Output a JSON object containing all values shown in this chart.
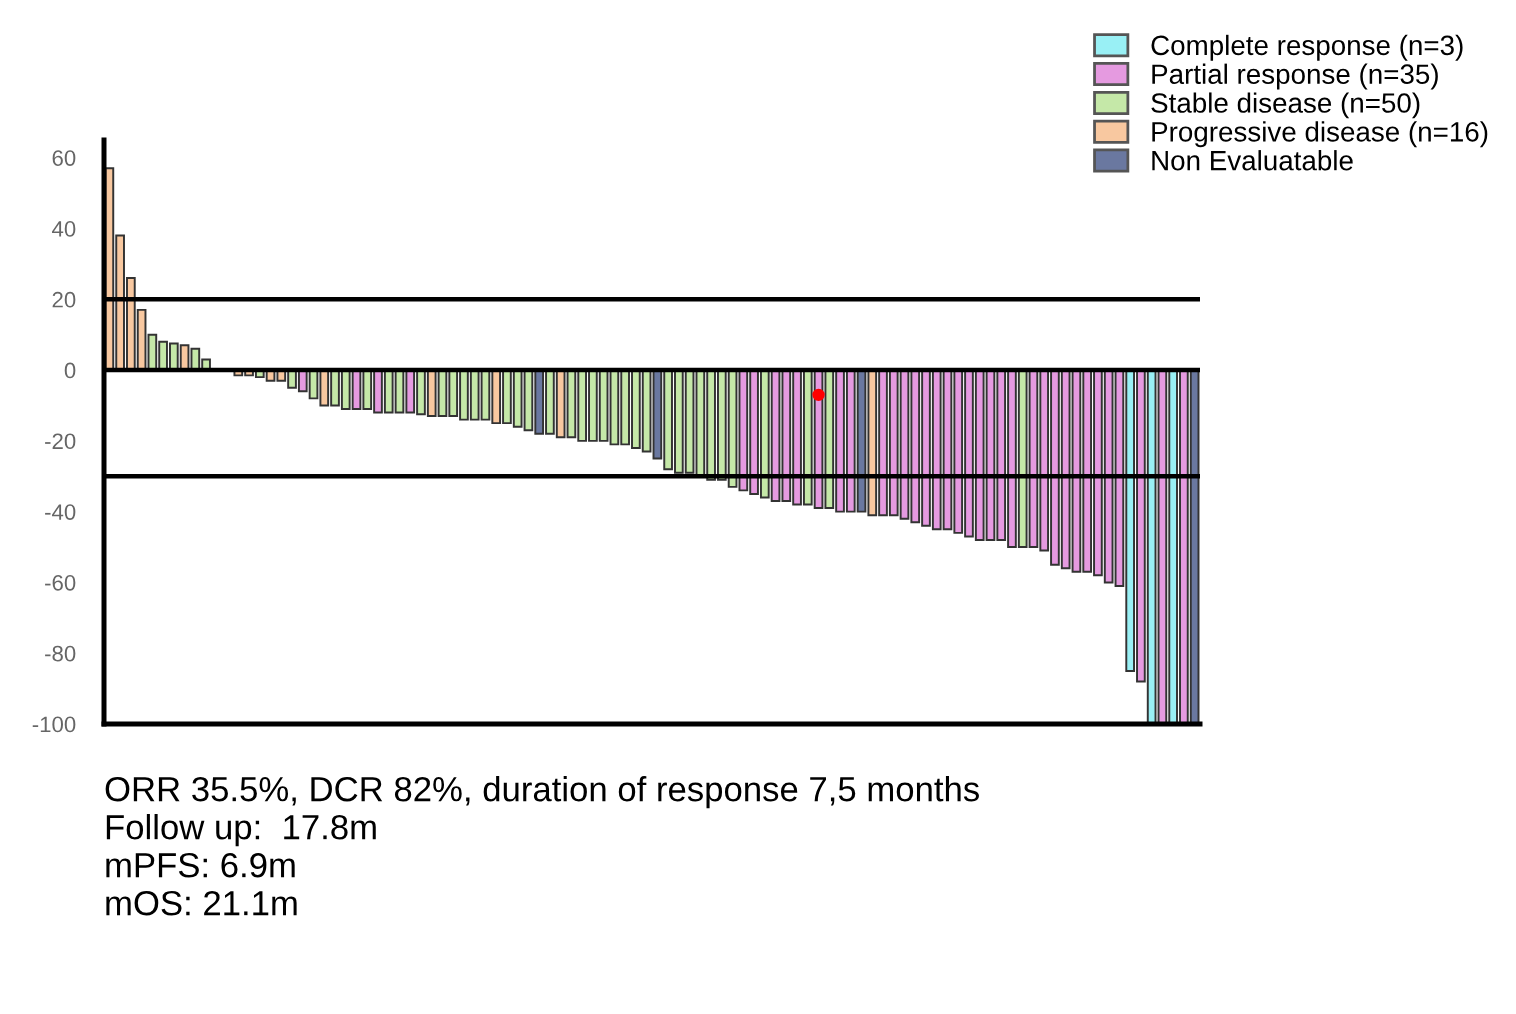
{
  "chart_data": {
    "type": "bar",
    "categories": [
      null,
      null,
      null,
      null,
      null,
      null,
      null,
      null,
      null,
      null,
      null,
      null,
      null,
      null,
      null,
      null,
      null,
      null,
      null,
      null,
      null,
      null,
      null,
      null,
      null,
      null,
      null,
      null,
      null,
      null,
      null,
      null,
      null,
      null,
      null,
      null,
      null,
      null,
      null,
      null,
      null,
      null,
      null,
      null,
      null,
      null,
      null,
      null,
      null,
      null,
      null,
      null,
      null,
      null,
      null,
      null,
      null,
      null,
      null,
      null,
      null,
      null,
      null,
      null,
      null,
      null,
      null,
      null,
      null,
      null,
      null,
      null,
      null,
      null,
      null,
      null,
      null,
      null,
      null,
      null,
      null,
      null,
      null,
      null,
      null,
      null,
      null,
      null,
      null,
      null,
      null,
      null,
      null,
      null,
      null,
      null,
      null,
      null,
      null,
      null,
      null,
      null
    ],
    "series": [
      {
        "name": "Complete response (n=3)",
        "color": "#99f0f5",
        "values": [
          null,
          null,
          null,
          null,
          null,
          null,
          null,
          null,
          null,
          null,
          null,
          null,
          null,
          null,
          null,
          null,
          null,
          null,
          null,
          null,
          null,
          null,
          null,
          null,
          null,
          null,
          null,
          null,
          null,
          null,
          null,
          null,
          null,
          null,
          null,
          null,
          null,
          null,
          null,
          null,
          null,
          null,
          null,
          null,
          null,
          null,
          null,
          null,
          null,
          null,
          null,
          null,
          null,
          null,
          null,
          null,
          null,
          null,
          null,
          null,
          null,
          null,
          null,
          null,
          null,
          null,
          null,
          null,
          null,
          null,
          null,
          null,
          null,
          null,
          null,
          null,
          null,
          null,
          null,
          null,
          null,
          null,
          null,
          null,
          null,
          null,
          null,
          null,
          null,
          null,
          null,
          null,
          null,
          null,
          null,
          -85,
          null,
          -100,
          null,
          -100,
          null,
          null
        ]
      },
      {
        "name": "Partial response (n=35)",
        "color": "#e59ae0",
        "values": [
          null,
          null,
          null,
          null,
          null,
          null,
          null,
          null,
          null,
          null,
          null,
          null,
          null,
          null,
          null,
          null,
          null,
          null,
          -6,
          null,
          null,
          null,
          null,
          -11,
          null,
          -12,
          null,
          null,
          -12,
          null,
          null,
          null,
          null,
          null,
          null,
          null,
          null,
          null,
          null,
          null,
          null,
          null,
          null,
          null,
          null,
          null,
          null,
          null,
          null,
          null,
          null,
          null,
          null,
          null,
          null,
          null,
          null,
          null,
          null,
          -34,
          -35,
          null,
          -37,
          -37,
          -38,
          null,
          -39,
          null,
          -40,
          -40,
          null,
          null,
          -41,
          -41,
          -42,
          -43,
          -44,
          -45,
          -45,
          -46,
          -47,
          -48,
          -48,
          -48,
          -50,
          null,
          -50,
          -51,
          -55,
          -56,
          -57,
          -57,
          -58,
          -60,
          -61,
          null,
          -88,
          null,
          -100,
          null,
          -100,
          null
        ]
      },
      {
        "name": "Stable disease (n=50)",
        "color": "#c5e8a8",
        "values": [
          null,
          null,
          null,
          null,
          10,
          8,
          7.5,
          null,
          6,
          3,
          0,
          0,
          null,
          null,
          -2,
          null,
          null,
          -5,
          null,
          -8,
          null,
          -10,
          -11,
          null,
          -11,
          null,
          -12,
          -12,
          null,
          -12.5,
          null,
          -13,
          -13,
          -14,
          -14,
          -14,
          null,
          -15,
          -16,
          -17,
          null,
          -18,
          null,
          -19,
          -20,
          -20,
          -20,
          -21,
          -21,
          -22,
          -23,
          null,
          -28,
          -29,
          -29,
          -30,
          -31,
          -31,
          -33,
          null,
          null,
          -36,
          null,
          null,
          null,
          -38,
          null,
          -39,
          null,
          null,
          null,
          null,
          null,
          null,
          null,
          null,
          null,
          null,
          null,
          null,
          null,
          null,
          null,
          null,
          null,
          -50,
          null,
          null,
          null,
          null,
          null,
          null,
          null,
          null,
          null,
          null,
          null,
          null,
          null,
          null,
          null,
          null
        ]
      },
      {
        "name": "Progressive disease (n=16)",
        "color": "#f8c8a0",
        "values": [
          57,
          38,
          26,
          17,
          null,
          null,
          null,
          7,
          null,
          null,
          null,
          null,
          -1.5,
          -1.5,
          null,
          -3,
          -3,
          null,
          null,
          null,
          -10,
          null,
          null,
          null,
          null,
          null,
          null,
          null,
          null,
          null,
          -13,
          null,
          null,
          null,
          null,
          null,
          -15,
          null,
          null,
          null,
          null,
          null,
          -19,
          null,
          null,
          null,
          null,
          null,
          null,
          null,
          null,
          null,
          null,
          null,
          null,
          null,
          null,
          null,
          null,
          null,
          null,
          null,
          null,
          null,
          null,
          null,
          null,
          null,
          null,
          null,
          null,
          -41,
          null,
          null,
          null,
          null,
          null,
          null,
          null,
          null,
          null,
          null,
          null,
          null,
          null,
          null,
          null,
          null,
          null,
          null,
          null,
          null,
          null,
          null,
          null,
          null,
          null,
          null,
          null,
          null,
          null,
          null
        ]
      },
      {
        "name": "Non Evaluatable",
        "color": "#6a78a0",
        "values": [
          null,
          null,
          null,
          null,
          null,
          null,
          null,
          null,
          null,
          null,
          null,
          null,
          null,
          null,
          null,
          null,
          null,
          null,
          null,
          null,
          null,
          null,
          null,
          null,
          null,
          null,
          null,
          null,
          null,
          null,
          null,
          null,
          null,
          null,
          null,
          null,
          null,
          null,
          null,
          null,
          -18,
          null,
          null,
          null,
          null,
          null,
          null,
          null,
          null,
          null,
          null,
          -25,
          null,
          null,
          null,
          null,
          null,
          null,
          null,
          null,
          null,
          null,
          null,
          null,
          null,
          null,
          null,
          null,
          null,
          null,
          -40,
          null,
          null,
          null,
          null,
          null,
          null,
          null,
          null,
          null,
          null,
          null,
          null,
          null,
          null,
          null,
          null,
          null,
          null,
          null,
          null,
          null,
          null,
          null,
          null,
          null,
          null,
          null,
          null,
          null,
          null,
          -100
        ]
      },
      {
        "type": "scatter",
        "color": "#ff0000",
        "values": [
          null,
          null,
          null,
          null,
          null,
          null,
          null,
          null,
          null,
          null,
          null,
          null,
          null,
          null,
          null,
          null,
          null,
          null,
          null,
          null,
          null,
          null,
          null,
          null,
          null,
          null,
          null,
          null,
          null,
          null,
          null,
          null,
          null,
          null,
          null,
          null,
          null,
          null,
          null,
          null,
          null,
          null,
          null,
          null,
          null,
          null,
          null,
          null,
          null,
          null,
          null,
          null,
          null,
          null,
          null,
          null,
          null,
          null,
          null,
          null,
          null,
          null,
          null,
          null,
          null,
          null,
          -7,
          null,
          null,
          null,
          null,
          null,
          null,
          null,
          null,
          null,
          null,
          null,
          null,
          null,
          null,
          null,
          null,
          null,
          null,
          null,
          null,
          null,
          null,
          null,
          null,
          null,
          null,
          null,
          null,
          null,
          null,
          null,
          null,
          null,
          null,
          null
        ]
      }
    ],
    "ylim": [
      -100,
      65
    ],
    "yticks": [
      -100,
      -80,
      -60,
      -40,
      -20,
      0,
      20,
      40,
      60
    ],
    "ref_lines": [
      {
        "axis": "y",
        "value": 20,
        "color": "#000000"
      },
      {
        "axis": "y",
        "value": 0,
        "color": "#000000"
      },
      {
        "axis": "y",
        "value": -30,
        "color": "#000000"
      }
    ],
    "grid": false,
    "legend": "top right",
    "tick_labels": "y",
    "annotations": [
      "ORR 35.5%, DCR 82%, duration of response 7,5 months",
      "Follow up:  17.8m",
      "mPFS: 6.9m",
      "mOS: 21.1m"
    ]
  }
}
